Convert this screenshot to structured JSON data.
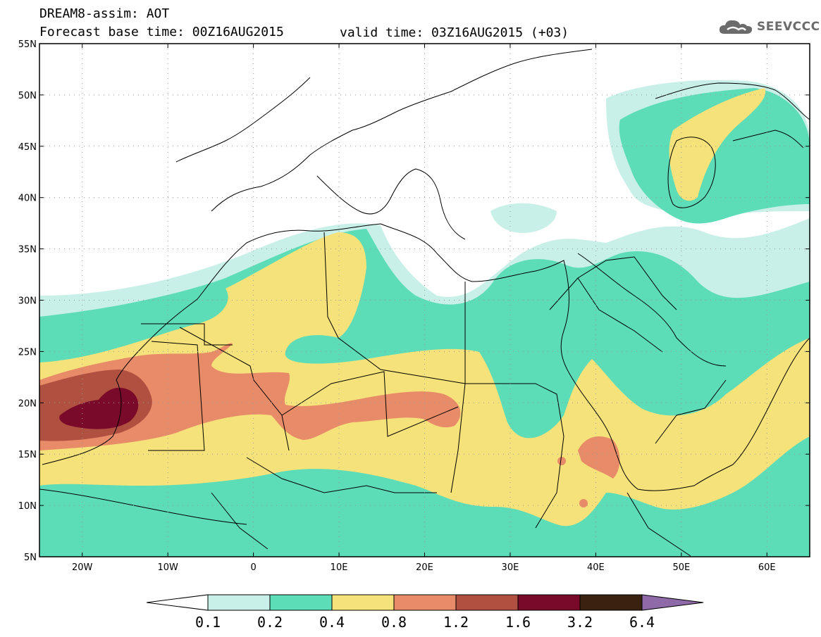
{
  "header": {
    "title_line1": "DREAM8-assim: AOT",
    "title_line2": "Forecast base time: 00Z16AUG2015",
    "valid_time": "valid time: 03Z16AUG2015 (+03)",
    "logo_text": "SEEVCCC",
    "logo_icon": "cloud-icon"
  },
  "map": {
    "projection": "lat-lon",
    "lon_range": [
      -25,
      65
    ],
    "lat_range": [
      5,
      55
    ],
    "lat_labels": [
      "55N",
      "50N",
      "45N",
      "40N",
      "35N",
      "30N",
      "25N",
      "20N",
      "15N",
      "10N",
      "5N"
    ],
    "lon_labels": [
      "20W",
      "10W",
      "0",
      "10E",
      "20E",
      "30E",
      "40E",
      "50E",
      "60E"
    ],
    "gridlines": "dotted"
  },
  "colorbar": {
    "levels": [
      "0.1",
      "0.2",
      "0.4",
      "0.8",
      "1.2",
      "1.6",
      "3.2",
      "6.4"
    ],
    "colors": [
      "#c8f0e8",
      "#5ddcb8",
      "#f5e27a",
      "#e88b68",
      "#b05040",
      "#7a0a2a",
      "#3a2210",
      "#8e6aa8"
    ]
  }
}
